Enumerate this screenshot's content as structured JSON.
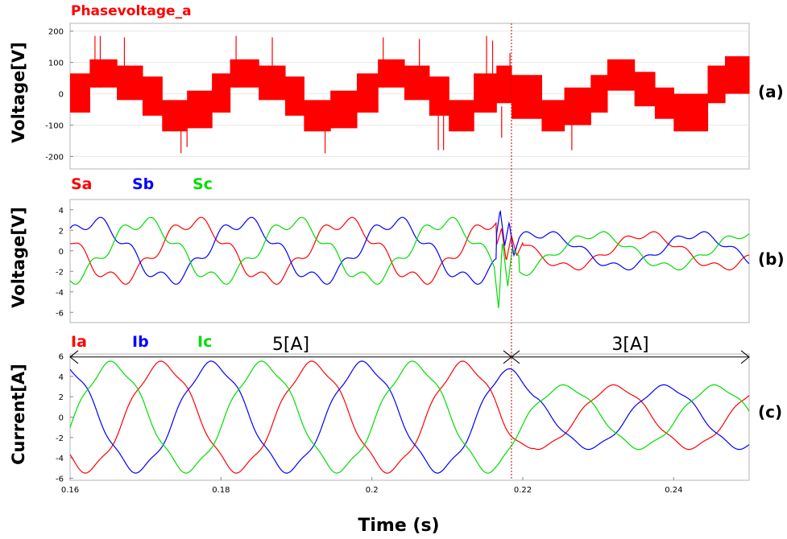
{
  "colors": {
    "a": "#ff0000",
    "b": "#0000ff",
    "c": "#00dd00",
    "frame": "#b4b4b4"
  },
  "xlabel": "Time (s)",
  "markers": {
    "divider_x": 0.2185
  },
  "chart_data": [
    {
      "id": "a",
      "type": "line",
      "panel_label": "(a)",
      "title": "Phasevoltage_a",
      "ylabel": "Voltage[V]",
      "xlim": [
        0.16,
        0.25
      ],
      "ylim": [
        -240,
        225
      ],
      "yticks": [
        "200",
        "100",
        "0",
        "-100",
        "-200"
      ],
      "ytick_values": [
        200,
        100,
        0,
        -100,
        -200
      ],
      "series": [
        {
          "name": "Phasevoltage_a",
          "color": "#ff0000"
        }
      ],
      "segments": [
        {
          "x": [
            0.16,
            0.1626
          ],
          "y": [
            -60,
            65
          ]
        },
        {
          "x": [
            0.1626,
            0.1662
          ],
          "y": [
            20,
            110
          ]
        },
        {
          "x": [
            0.1662,
            0.1696
          ],
          "y": [
            -20,
            90
          ]
        },
        {
          "x": [
            0.1696,
            0.1722
          ],
          "y": [
            -70,
            55
          ]
        },
        {
          "x": [
            0.1722,
            0.1755
          ],
          "y": [
            -120,
            -20
          ]
        },
        {
          "x": [
            0.1755,
            0.1788
          ],
          "y": [
            -110,
            10
          ]
        },
        {
          "x": [
            0.1788,
            0.1812
          ],
          "y": [
            -60,
            65
          ]
        },
        {
          "x": [
            0.1812,
            0.185
          ],
          "y": [
            20,
            110
          ]
        },
        {
          "x": [
            0.185,
            0.1885
          ],
          "y": [
            -20,
            90
          ]
        },
        {
          "x": [
            0.1885,
            0.191
          ],
          "y": [
            -70,
            55
          ]
        },
        {
          "x": [
            0.191,
            0.1945
          ],
          "y": [
            -120,
            -20
          ]
        },
        {
          "x": [
            0.1945,
            0.198
          ],
          "y": [
            -110,
            10
          ]
        },
        {
          "x": [
            0.198,
            0.2008
          ],
          "y": [
            -60,
            65
          ]
        },
        {
          "x": [
            0.2008,
            0.2043
          ],
          "y": [
            20,
            110
          ]
        },
        {
          "x": [
            0.2043,
            0.2076
          ],
          "y": [
            -20,
            90
          ]
        },
        {
          "x": [
            0.2076,
            0.2102
          ],
          "y": [
            -70,
            55
          ]
        },
        {
          "x": [
            0.2102,
            0.2135
          ],
          "y": [
            -120,
            -20
          ]
        },
        {
          "x": [
            0.2135,
            0.2165
          ],
          "y": [
            -60,
            65
          ]
        },
        {
          "x": [
            0.2165,
            0.2185
          ],
          "y": [
            -30,
            90
          ]
        },
        {
          "x": [
            0.2185,
            0.2225
          ],
          "y": [
            -80,
            60
          ]
        },
        {
          "x": [
            0.2225,
            0.2255
          ],
          "y": [
            -120,
            -20
          ]
        },
        {
          "x": [
            0.2255,
            0.229
          ],
          "y": [
            -100,
            20
          ]
        },
        {
          "x": [
            0.229,
            0.2312
          ],
          "y": [
            -60,
            60
          ]
        },
        {
          "x": [
            0.2312,
            0.2348
          ],
          "y": [
            10,
            110
          ]
        },
        {
          "x": [
            0.2348,
            0.2375
          ],
          "y": [
            -40,
            70
          ]
        },
        {
          "x": [
            0.2375,
            0.24
          ],
          "y": [
            -80,
            20
          ]
        },
        {
          "x": [
            0.24,
            0.2445
          ],
          "y": [
            -120,
            0
          ]
        },
        {
          "x": [
            0.2445,
            0.2468
          ],
          "y": [
            -30,
            90
          ]
        },
        {
          "x": [
            0.2468,
            0.25
          ],
          "y": [
            0,
            120
          ]
        }
      ],
      "spikes": [
        {
          "x": 0.1633,
          "y": [
            20,
            185
          ]
        },
        {
          "x": 0.164,
          "y": [
            20,
            185
          ]
        },
        {
          "x": 0.1672,
          "y": [
            20,
            180
          ]
        },
        {
          "x": 0.1747,
          "y": [
            -190,
            -60
          ]
        },
        {
          "x": 0.1755,
          "y": [
            -170,
            -60
          ]
        },
        {
          "x": 0.182,
          "y": [
            20,
            185
          ]
        },
        {
          "x": 0.1868,
          "y": [
            30,
            180
          ]
        },
        {
          "x": 0.1938,
          "y": [
            -190,
            -60
          ]
        },
        {
          "x": 0.2015,
          "y": [
            20,
            180
          ]
        },
        {
          "x": 0.2063,
          "y": [
            30,
            175
          ]
        },
        {
          "x": 0.2088,
          "y": [
            -180,
            -60
          ]
        },
        {
          "x": 0.2095,
          "y": [
            -180,
            -60
          ]
        },
        {
          "x": 0.2152,
          "y": [
            20,
            185
          ]
        },
        {
          "x": 0.216,
          "y": [
            20,
            170
          ]
        },
        {
          "x": 0.2172,
          "y": [
            -140,
            -40
          ]
        },
        {
          "x": 0.2183,
          "y": [
            40,
            130
          ]
        },
        {
          "x": 0.2265,
          "y": [
            -180,
            -60
          ]
        }
      ]
    },
    {
      "id": "b",
      "type": "line",
      "panel_label": "(b)",
      "ylabel": "Voltage[V]",
      "xlim": [
        0.16,
        0.25
      ],
      "ylim": [
        -7,
        5
      ],
      "yticks": [
        "4",
        "2",
        "0",
        "-2",
        "-4",
        "-6"
      ],
      "ytick_values": [
        4,
        2,
        0,
        -2,
        -4,
        -6
      ],
      "legend": [
        "Sa",
        "Sb",
        "Sc"
      ],
      "series": [
        {
          "name": "Sa",
          "color": "#ff0000",
          "amp1": 2.8,
          "amp2": 1.6,
          "phase_deg": 155
        },
        {
          "name": "Sb",
          "color": "#0000ff",
          "amp1": 2.8,
          "amp2": 1.6,
          "phase_deg": 35
        },
        {
          "name": "Sc",
          "color": "#00dd00",
          "amp1": 2.8,
          "amp2": 1.6,
          "phase_deg": 275
        }
      ],
      "frequency_hz": 50,
      "step_time": 0.2175,
      "settle_time": 0.2225,
      "transient": [
        {
          "series": "Sa",
          "x": [
            0.2165,
            0.2172,
            0.2178,
            0.2185,
            0.2192,
            0.22
          ],
          "y": [
            0.5,
            2.2,
            -1.0,
            1.5,
            -0.5,
            0.8
          ]
        },
        {
          "series": "Sb",
          "x": [
            0.2165,
            0.217,
            0.2176,
            0.2182,
            0.2188,
            0.2195
          ],
          "y": [
            1.5,
            4.0,
            0.5,
            2.8,
            -0.5,
            1.2
          ]
        },
        {
          "series": "Sc",
          "x": [
            0.2162,
            0.2168,
            0.2173,
            0.218,
            0.2186,
            0.2195
          ],
          "y": [
            -1.5,
            -5.7,
            1.0,
            -3.5,
            0.2,
            -0.5
          ]
        }
      ]
    },
    {
      "id": "c",
      "type": "line",
      "panel_label": "(c)",
      "ylabel": "Current[A]",
      "xlim": [
        0.16,
        0.25
      ],
      "ylim": [
        -6.2,
        6.2
      ],
      "yticks": [
        "6",
        "4",
        "2",
        "0",
        "-2",
        "-4",
        "-6"
      ],
      "ytick_values": [
        6,
        4,
        2,
        0,
        -2,
        -4,
        -6
      ],
      "xticks": [
        "0.16",
        "0.18",
        "0.2",
        "0.22",
        "0.24"
      ],
      "xtick_values": [
        0.16,
        0.18,
        0.2,
        0.22,
        0.24
      ],
      "legend": [
        "Ia",
        "Ib",
        "Ic"
      ],
      "series": [
        {
          "name": "Ia",
          "color": "#ff0000",
          "amp1": 5.2,
          "amp2": 3.0,
          "phase_deg": 230
        },
        {
          "name": "Ib",
          "color": "#0000ff",
          "amp1": 5.2,
          "amp2": 3.0,
          "phase_deg": 110
        },
        {
          "name": "Ic",
          "color": "#00dd00",
          "amp1": 5.2,
          "amp2": 3.0,
          "phase_deg": 350
        }
      ],
      "frequency_hz": 50,
      "step_time": 0.217,
      "settle_time": 0.2215,
      "annotations": [
        {
          "text": "5[A]",
          "x_from": 0.16,
          "x_to": 0.2185,
          "y": 5.9
        },
        {
          "text": "3[A]",
          "x_from": 0.2185,
          "x_to": 0.25,
          "y": 5.9
        }
      ]
    }
  ]
}
